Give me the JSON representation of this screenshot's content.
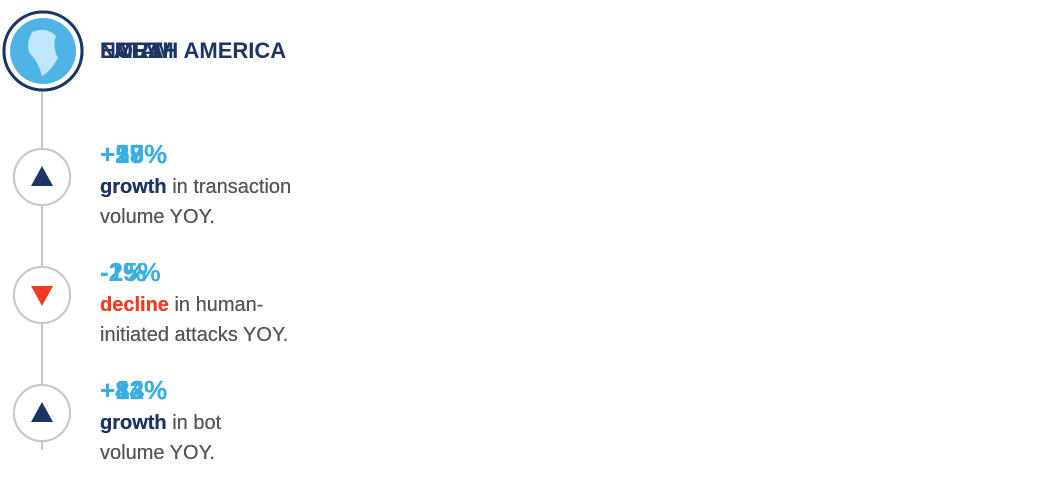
{
  "regions": [
    {
      "name": "EMEA",
      "items": [
        {
          "trend": "up",
          "value": "+19%",
          "keyword": "growth",
          "rest": " in transaction",
          "line2": "volume YOY."
        },
        {
          "trend": "down",
          "value": "-25%",
          "keyword": "decline",
          "rest": " in human-",
          "line2": "initiated attacks YOY."
        },
        {
          "trend": "up",
          "value": "+13%",
          "keyword": "growth",
          "rest": " in bot",
          "line2": "volume YOY."
        }
      ]
    },
    {
      "name": "LATAM",
      "items": [
        {
          "trend": "up",
          "value": "+57%",
          "keyword": "growth",
          "rest": " in transaction",
          "line2": "volume YOY."
        },
        {
          "trend": "down",
          "value": "-1%",
          "keyword": "decline",
          "rest": " in human-",
          "line2": "initiated attacks YOY."
        },
        {
          "trend": "up",
          "value": "+84%",
          "keyword": "growth",
          "rest": " in bot",
          "line2": "volume YOY."
        }
      ]
    },
    {
      "name": "NORTH AMERICA",
      "items": [
        {
          "trend": "up",
          "value": "+28%",
          "keyword": "growth",
          "rest": " in transaction",
          "line2": "volume YOY."
        },
        {
          "trend": "down",
          "value": "-1%",
          "keyword": "decline",
          "rest": " in human-",
          "line2": "initiated attacks YOY."
        },
        {
          "trend": "up",
          "value": "+42%",
          "keyword": "growth",
          "rest": " in bot",
          "line2": "volume YOY."
        }
      ]
    }
  ]
}
